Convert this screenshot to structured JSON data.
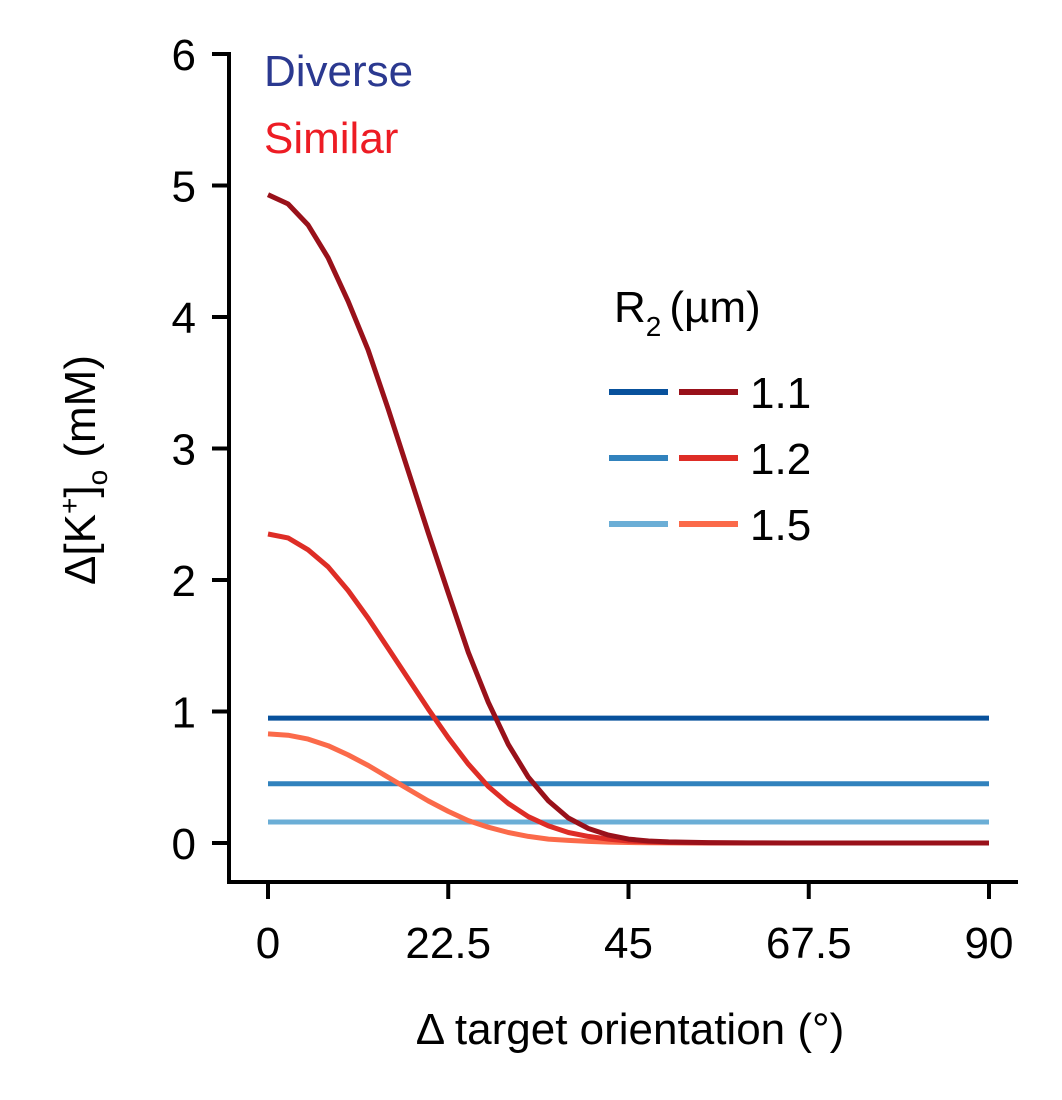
{
  "chart_data": {
    "type": "line",
    "xlabel": "Δ target orientation (°)",
    "ylabel": {
      "prefix": "Δ[K",
      "superscript": "+",
      "bracket": "]",
      "subscript": "o",
      "suffix": " (mM)"
    },
    "xlim": [
      -4,
      92
    ],
    "ylim": [
      -0.3,
      6
    ],
    "x_ticks": [
      0,
      22.5,
      45,
      67.5,
      90
    ],
    "x_tick_labels": [
      "0",
      "22.5",
      "45",
      "67.5",
      "90"
    ],
    "y_ticks": [
      0,
      1,
      2,
      3,
      4,
      5,
      6
    ],
    "y_tick_labels": [
      "0",
      "1",
      "2",
      "3",
      "4",
      "5",
      "6"
    ],
    "groups": [
      {
        "label": "Diverse",
        "color": "#2b3990"
      },
      {
        "label": "Similar",
        "color": "#ed1c24"
      }
    ],
    "legend": {
      "title_main": "R",
      "title_sub": "2",
      "title_suffix": "(µm)",
      "placement": "center-right",
      "entries": [
        {
          "label": "1.1",
          "diverse_color": "#08519c",
          "similar_color": "#99111a"
        },
        {
          "label": "1.2",
          "diverse_color": "#3182bd",
          "similar_color": "#de2d26"
        },
        {
          "label": "1.5",
          "diverse_color": "#6baed6",
          "similar_color": "#fb6a4a"
        }
      ]
    },
    "x": [
      0,
      2.5,
      5,
      7.5,
      10,
      12.5,
      15,
      17.5,
      20,
      22.5,
      25,
      27.5,
      30,
      32.5,
      35,
      37.5,
      40,
      42.5,
      45,
      47.5,
      50,
      55,
      60,
      65,
      70,
      75,
      80,
      85,
      90
    ],
    "series": [
      {
        "group": "Diverse",
        "legend": "1.1",
        "color": "#08519c",
        "values": [
          0.95,
          0.95,
          0.95,
          0.95,
          0.95,
          0.95,
          0.95,
          0.95,
          0.95,
          0.95,
          0.95,
          0.95,
          0.95,
          0.95,
          0.95,
          0.95,
          0.95,
          0.95,
          0.95,
          0.95,
          0.95,
          0.95,
          0.95,
          0.95,
          0.95,
          0.95,
          0.95,
          0.95,
          0.95
        ]
      },
      {
        "group": "Diverse",
        "legend": "1.2",
        "color": "#3182bd",
        "values": [
          0.45,
          0.45,
          0.45,
          0.45,
          0.45,
          0.45,
          0.45,
          0.45,
          0.45,
          0.45,
          0.45,
          0.45,
          0.45,
          0.45,
          0.45,
          0.45,
          0.45,
          0.45,
          0.45,
          0.45,
          0.45,
          0.45,
          0.45,
          0.45,
          0.45,
          0.45,
          0.45,
          0.45,
          0.45
        ]
      },
      {
        "group": "Diverse",
        "legend": "1.5",
        "color": "#6baed6",
        "values": [
          0.16,
          0.16,
          0.16,
          0.16,
          0.16,
          0.16,
          0.16,
          0.16,
          0.16,
          0.16,
          0.16,
          0.16,
          0.16,
          0.16,
          0.16,
          0.16,
          0.16,
          0.16,
          0.16,
          0.16,
          0.16,
          0.16,
          0.16,
          0.16,
          0.16,
          0.16,
          0.16,
          0.16,
          0.16
        ]
      },
      {
        "group": "Similar",
        "legend": "1.1",
        "color": "#99111a",
        "values": [
          4.93,
          4.86,
          4.7,
          4.45,
          4.12,
          3.75,
          3.3,
          2.83,
          2.36,
          1.9,
          1.45,
          1.07,
          0.75,
          0.5,
          0.32,
          0.19,
          0.11,
          0.06,
          0.03,
          0.015,
          0.008,
          0.003,
          0.001,
          0,
          0,
          0,
          0,
          0,
          0
        ]
      },
      {
        "group": "Similar",
        "legend": "1.2",
        "color": "#de2d26",
        "values": [
          2.35,
          2.32,
          2.23,
          2.1,
          1.92,
          1.71,
          1.48,
          1.25,
          1.02,
          0.8,
          0.6,
          0.43,
          0.3,
          0.2,
          0.13,
          0.08,
          0.05,
          0.03,
          0.015,
          0.008,
          0.004,
          0.001,
          0,
          0,
          0,
          0,
          0,
          0,
          0
        ]
      },
      {
        "group": "Similar",
        "legend": "1.5",
        "color": "#fb6a4a",
        "values": [
          0.83,
          0.82,
          0.79,
          0.74,
          0.67,
          0.59,
          0.5,
          0.41,
          0.32,
          0.24,
          0.17,
          0.12,
          0.08,
          0.05,
          0.03,
          0.02,
          0.012,
          0.007,
          0.004,
          0.002,
          0.001,
          0,
          0,
          0,
          0,
          0,
          0,
          0,
          0
        ]
      }
    ]
  }
}
